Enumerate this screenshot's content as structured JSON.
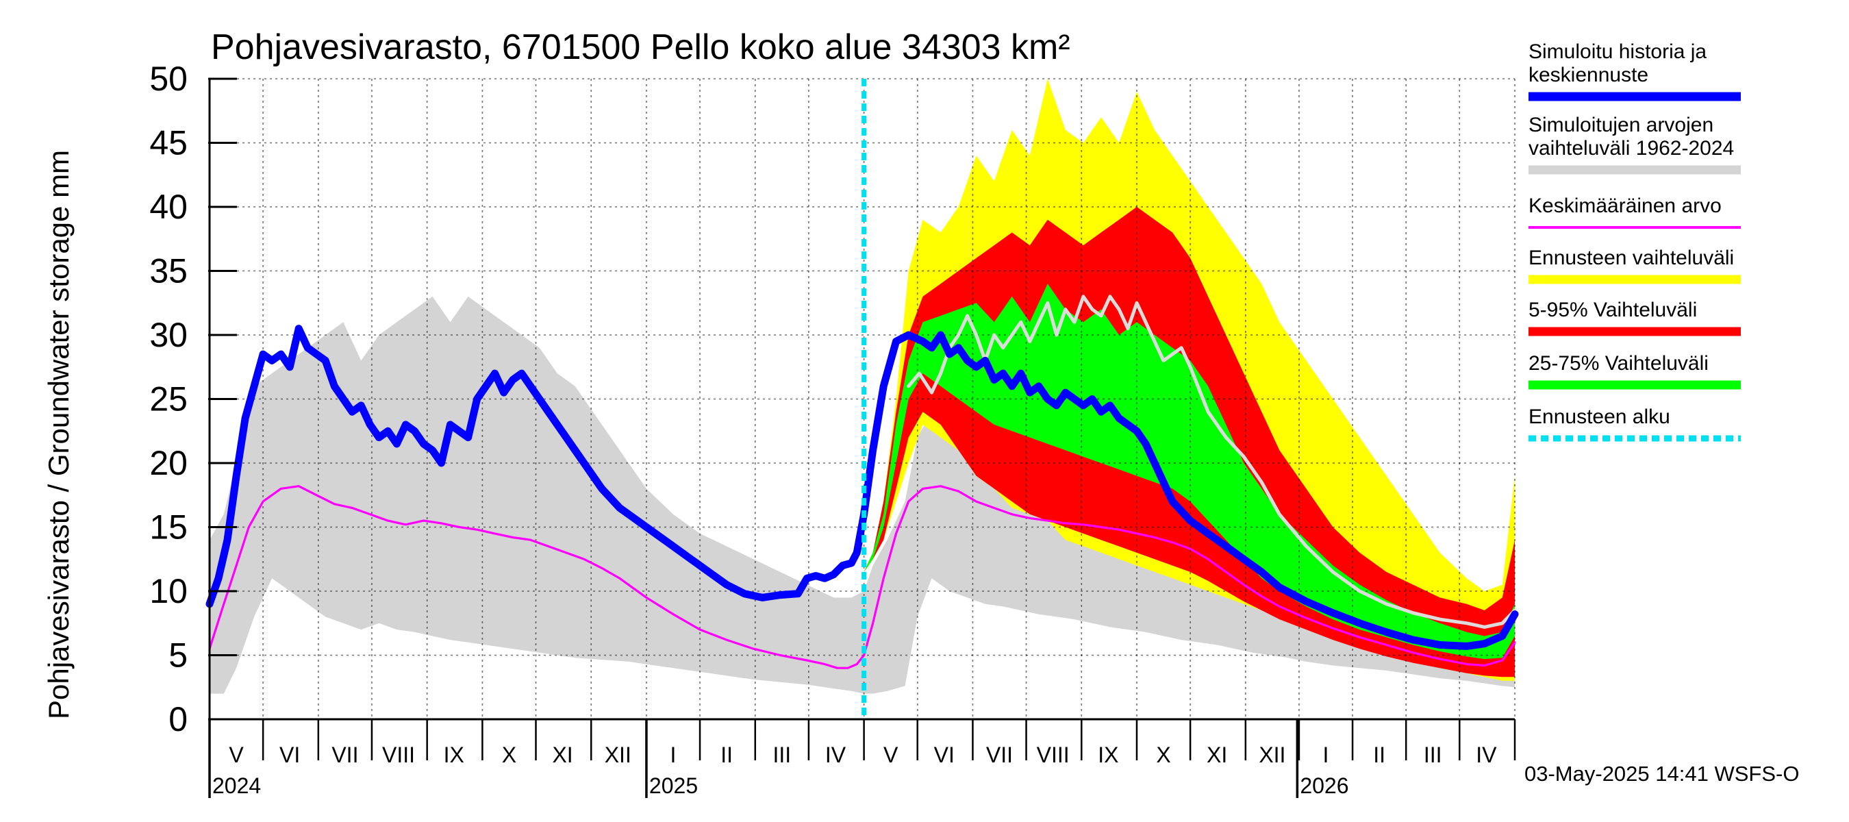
{
  "chart_data": {
    "type": "area",
    "title": "Pohjavesivarasto, 6701500 Pello koko alue 34303 km²",
    "ylabel": "Pohjavesivarasto / Groundwater storage   mm",
    "ylim": [
      0,
      50
    ],
    "yticks": [
      0,
      5,
      10,
      15,
      20,
      25,
      30,
      35,
      40,
      45,
      50
    ],
    "xlim_days": [
      0,
      732
    ],
    "forecast_start_day": 367,
    "year_ticks_day": [
      0,
      245,
      610
    ],
    "years": [
      {
        "label": "2024",
        "day": 0
      },
      {
        "label": "2025",
        "day": 245
      },
      {
        "label": "2026",
        "day": 610
      }
    ],
    "month_ticks_day": [
      0,
      30,
      61,
      91,
      122,
      153,
      183,
      214,
      245,
      275,
      306,
      336,
      367,
      397,
      428,
      458,
      489,
      520,
      550,
      581,
      611,
      641,
      671,
      701,
      732
    ],
    "months": [
      {
        "label": "V",
        "day": 15
      },
      {
        "label": "VI",
        "day": 45
      },
      {
        "label": "VII",
        "day": 76
      },
      {
        "label": "VIII",
        "day": 106
      },
      {
        "label": "IX",
        "day": 137
      },
      {
        "label": "X",
        "day": 168
      },
      {
        "label": "XI",
        "day": 198
      },
      {
        "label": "XII",
        "day": 229
      },
      {
        "label": "I",
        "day": 260
      },
      {
        "label": "II",
        "day": 290
      },
      {
        "label": "III",
        "day": 321
      },
      {
        "label": "IV",
        "day": 351
      },
      {
        "label": "V",
        "day": 382
      },
      {
        "label": "VI",
        "day": 412
      },
      {
        "label": "VII",
        "day": 443
      },
      {
        "label": "VIII",
        "day": 473
      },
      {
        "label": "IX",
        "day": 504
      },
      {
        "label": "X",
        "day": 535
      },
      {
        "label": "XI",
        "day": 565
      },
      {
        "label": "XII",
        "day": 596
      },
      {
        "label": "I",
        "day": 626
      },
      {
        "label": "II",
        "day": 656
      },
      {
        "label": "III",
        "day": 686
      },
      {
        "label": "IV",
        "day": 716
      }
    ],
    "series": [
      {
        "name": "Simuloitujen arvojen vaihteluväli 1962-2024",
        "kind": "band",
        "color": "#d4d4d4",
        "x": [
          0,
          8,
          15,
          25,
          35,
          45,
          55,
          65,
          75,
          85,
          95,
          105,
          115,
          125,
          135,
          145,
          155,
          165,
          175,
          185,
          195,
          205,
          215,
          225,
          235,
          245,
          260,
          275,
          290,
          305,
          320,
          335,
          350,
          360,
          367,
          372,
          380,
          390,
          397,
          405,
          415,
          425,
          435,
          445,
          455,
          465,
          475,
          485,
          495,
          505,
          515,
          525,
          535,
          545,
          555,
          565,
          575,
          585,
          595,
          605,
          615,
          630,
          645,
          660,
          675,
          690,
          705,
          715,
          725,
          732
        ],
        "lower": [
          2,
          2,
          4,
          8,
          11,
          10,
          9,
          8,
          7.5,
          7,
          7.5,
          7,
          6.8,
          6.5,
          6.2,
          6,
          5.8,
          5.6,
          5.4,
          5.2,
          5.0,
          4.8,
          4.7,
          4.6,
          4.5,
          4.3,
          4.0,
          3.7,
          3.4,
          3.1,
          2.9,
          2.7,
          2.4,
          2.2,
          2.0,
          2.0,
          2.2,
          2.6,
          8,
          11,
          10,
          9.5,
          9,
          8.8,
          8.5,
          8.2,
          8.0,
          7.8,
          7.5,
          7.2,
          7.0,
          6.8,
          6.5,
          6.2,
          6.0,
          5.8,
          5.5,
          5.2,
          5.0,
          4.8,
          4.5,
          4.2,
          4.0,
          3.8,
          3.5,
          3.2,
          3.0,
          2.8,
          2.6,
          2.5
        ],
        "upper": [
          14,
          16,
          20,
          26,
          27,
          28,
          29,
          30,
          31,
          28,
          30,
          31,
          32,
          33,
          31,
          33,
          32,
          31,
          30,
          29,
          27,
          26,
          24,
          22,
          20,
          18,
          16,
          14.5,
          13.5,
          12.5,
          11.5,
          10.5,
          9.5,
          9.5,
          10,
          12,
          14,
          17,
          22,
          24,
          23,
          23.5,
          23,
          22.5,
          22,
          21.5,
          21,
          20.5,
          20,
          19.5,
          19,
          18.5,
          18,
          17.5,
          17,
          16.5,
          16,
          15.5,
          15,
          14.5,
          14,
          13,
          12,
          11,
          10.2,
          9.5,
          9,
          8.5,
          8.2,
          8.0
        ]
      },
      {
        "name": "Ennusteen vaihteluväli",
        "kind": "band",
        "color": "#ffff00",
        "x": [
          367,
          372,
          378,
          385,
          392,
          400,
          410,
          420,
          430,
          440,
          450,
          460,
          470,
          480,
          490,
          500,
          510,
          520,
          530,
          540,
          550,
          560,
          570,
          580,
          590,
          600,
          615,
          630,
          645,
          660,
          675,
          690,
          705,
          715,
          725,
          732
        ],
        "lower": [
          11.5,
          12.5,
          14,
          17,
          20,
          23,
          22,
          21,
          19,
          18,
          16.5,
          16,
          15.5,
          14,
          13.5,
          13,
          12.5,
          12,
          11.5,
          11,
          10.5,
          10,
          9.5,
          9,
          8.5,
          8,
          7.2,
          6.5,
          5.8,
          5.2,
          4.6,
          4.0,
          3.6,
          3.3,
          3.0,
          3.0
        ],
        "upper": [
          11.5,
          13,
          17,
          25,
          35,
          39,
          38,
          40,
          44,
          42,
          46,
          44,
          50,
          46,
          45,
          47,
          45,
          49,
          46,
          44,
          42,
          40,
          38,
          36,
          34,
          31,
          28,
          25,
          22,
          19,
          16,
          13,
          11,
          10,
          10.5,
          19
        ]
      },
      {
        "name": "5-95% Vaihteluväli",
        "kind": "band",
        "color": "#ff0000",
        "x": [
          367,
          372,
          378,
          385,
          392,
          400,
          410,
          420,
          430,
          440,
          450,
          460,
          470,
          480,
          490,
          500,
          510,
          520,
          530,
          540,
          550,
          560,
          570,
          580,
          590,
          600,
          615,
          630,
          645,
          660,
          675,
          690,
          705,
          715,
          725,
          732
        ],
        "lower": [
          11.5,
          12.5,
          14,
          18,
          22,
          24,
          23,
          21,
          19,
          18,
          17,
          16,
          15.5,
          15,
          14.5,
          14,
          13.5,
          13,
          12.5,
          12,
          11.5,
          10.8,
          10,
          9.2,
          8.5,
          7.8,
          7,
          6.2,
          5.5,
          4.9,
          4.4,
          4.0,
          3.6,
          3.4,
          3.3,
          3.3
        ],
        "upper": [
          11.5,
          13,
          17,
          24,
          30,
          33,
          34,
          35,
          36,
          37,
          38,
          37,
          39,
          38,
          37,
          38,
          39,
          40,
          39,
          38,
          36,
          33,
          30,
          27,
          24,
          21,
          18,
          15,
          13,
          11.5,
          10.5,
          9.5,
          9,
          8.5,
          9.5,
          14
        ]
      },
      {
        "name": "25-75% Vaihteluväli",
        "kind": "band",
        "color": "#00ff00",
        "x": [
          367,
          372,
          378,
          385,
          392,
          400,
          410,
          420,
          430,
          440,
          450,
          460,
          470,
          480,
          490,
          500,
          510,
          520,
          530,
          540,
          550,
          560,
          570,
          580,
          590,
          600,
          615,
          630,
          645,
          660,
          675,
          690,
          705,
          715,
          725,
          732
        ],
        "lower": [
          11.5,
          12.5,
          15,
          20,
          25,
          27,
          26,
          25,
          24,
          23,
          22.5,
          22,
          21.5,
          21,
          20.5,
          20,
          19.5,
          19,
          18.5,
          18,
          17,
          15.5,
          14,
          12.5,
          11,
          10,
          8.8,
          7.8,
          7,
          6.4,
          5.8,
          5.3,
          4.9,
          4.7,
          4.8,
          6.5
        ],
        "upper": [
          11.5,
          13,
          16,
          23,
          28,
          31,
          31.5,
          32,
          32.5,
          31,
          33,
          31,
          34,
          32,
          31,
          32,
          30,
          31,
          30,
          29,
          28,
          26,
          23,
          20,
          18,
          16,
          14,
          12,
          10.5,
          9.3,
          8.3,
          7.5,
          6.8,
          6.5,
          6.8,
          9
        ]
      },
      {
        "name": "Keskimääräinen arvo",
        "kind": "line",
        "color": "#ff00ff",
        "x": [
          0,
          8,
          15,
          22,
          30,
          40,
          50,
          60,
          70,
          80,
          90,
          100,
          110,
          120,
          130,
          140,
          150,
          160,
          170,
          180,
          190,
          200,
          210,
          220,
          230,
          245,
          260,
          275,
          290,
          305,
          320,
          335,
          345,
          352,
          358,
          363,
          367,
          372,
          378,
          385,
          392,
          400,
          410,
          420,
          430,
          440,
          450,
          460,
          470,
          480,
          490,
          500,
          510,
          520,
          530,
          540,
          550,
          560,
          570,
          580,
          590,
          600,
          615,
          630,
          645,
          660,
          675,
          690,
          705,
          715,
          725,
          732
        ],
        "values": [
          5.5,
          9,
          12,
          15,
          17,
          18,
          18.2,
          17.5,
          16.8,
          16.5,
          16,
          15.5,
          15.2,
          15.5,
          15.3,
          15,
          14.8,
          14.5,
          14.2,
          14,
          13.5,
          13,
          12.5,
          11.8,
          11,
          9.5,
          8.2,
          7,
          6.2,
          5.5,
          5,
          4.6,
          4.3,
          4.0,
          4.0,
          4.3,
          5,
          7.5,
          11,
          14.5,
          17,
          18,
          18.2,
          17.8,
          17,
          16.5,
          16,
          15.7,
          15.5,
          15.3,
          15.2,
          15.0,
          14.8,
          14.5,
          14.2,
          13.8,
          13.3,
          12.5,
          11.5,
          10.5,
          9.6,
          8.8,
          7.9,
          7.1,
          6.4,
          5.8,
          5.2,
          4.7,
          4.3,
          4.2,
          4.6,
          6
        ]
      },
      {
        "name": "Simuloitu historia ja keskiennuste (upper scenario)",
        "kind": "line",
        "color": "#dcdcdc",
        "x": [
          392,
          398,
          405,
          410,
          415,
          420,
          425,
          430,
          435,
          440,
          445,
          450,
          455,
          460,
          465,
          470,
          475,
          480,
          485,
          490,
          495,
          500,
          505,
          510,
          515,
          520,
          525,
          530,
          535,
          540,
          545,
          550,
          560,
          570,
          580,
          590,
          600,
          615,
          630,
          645,
          660,
          675,
          690,
          705,
          715,
          725,
          732
        ],
        "values": [
          26,
          27,
          25.5,
          27,
          29,
          30,
          31.5,
          30,
          28,
          30,
          29,
          30,
          31,
          29.5,
          31,
          32.5,
          30,
          32,
          31,
          33,
          32,
          31.5,
          33,
          32,
          30.5,
          32.5,
          31,
          29.5,
          28,
          28.5,
          29,
          27.5,
          24,
          22,
          20.5,
          18.5,
          16,
          13.5,
          11.5,
          10,
          9,
          8.3,
          7.8,
          7.5,
          7.2,
          7.5,
          8.5
        ]
      },
      {
        "name": "Simuloitu historia ja keskiennuste",
        "kind": "line",
        "color": "#0000ff",
        "x": [
          0,
          5,
          10,
          15,
          20,
          25,
          30,
          35,
          40,
          45,
          50,
          55,
          60,
          65,
          70,
          75,
          80,
          85,
          90,
          95,
          100,
          105,
          110,
          115,
          120,
          125,
          130,
          135,
          140,
          145,
          150,
          155,
          160,
          165,
          170,
          175,
          180,
          185,
          190,
          195,
          200,
          205,
          210,
          215,
          220,
          230,
          240,
          250,
          260,
          270,
          280,
          290,
          300,
          310,
          320,
          330,
          335,
          340,
          345,
          350,
          355,
          360,
          363,
          367,
          372,
          378,
          385,
          392,
          400,
          405,
          410,
          415,
          420,
          425,
          430,
          435,
          440,
          445,
          450,
          455,
          460,
          465,
          470,
          475,
          480,
          485,
          490,
          495,
          500,
          505,
          510,
          515,
          520,
          525,
          530,
          535,
          540,
          550,
          560,
          570,
          580,
          590,
          600,
          615,
          630,
          645,
          660,
          675,
          690,
          705,
          715,
          725,
          732
        ],
        "values": [
          9,
          11,
          14,
          19,
          23.5,
          26,
          28.5,
          28,
          28.5,
          27.5,
          30.5,
          29,
          28.5,
          28,
          26,
          25,
          24,
          24.5,
          23,
          22,
          22.5,
          21.5,
          23,
          22.5,
          21.5,
          21,
          20,
          23,
          22.5,
          22,
          25,
          26,
          27,
          25.5,
          26.5,
          27,
          26,
          25,
          24,
          23,
          22,
          21,
          20,
          19,
          18,
          16.5,
          15.5,
          14.5,
          13.5,
          12.5,
          11.5,
          10.5,
          9.8,
          9.5,
          9.7,
          9.8,
          11,
          11.2,
          11,
          11.3,
          12,
          12.2,
          13,
          16,
          21,
          26,
          29.5,
          30,
          29.5,
          29,
          30,
          28.5,
          29,
          28,
          27.5,
          28,
          26.5,
          27,
          26,
          27,
          25.5,
          26,
          25,
          24.5,
          25.5,
          25,
          24.5,
          25,
          24,
          24.5,
          23.5,
          23,
          22.5,
          21.5,
          20,
          18.5,
          17,
          15.5,
          14.5,
          13.5,
          12.5,
          11.5,
          10.3,
          9.2,
          8.3,
          7.5,
          6.8,
          6.2,
          5.8,
          5.7,
          5.9,
          6.5,
          8.2
        ]
      },
      {
        "name": "Ennusteen alku",
        "kind": "vline",
        "color": "#00e0f0",
        "day": 367
      }
    ],
    "legend": [
      {
        "label": "Simuloitu historia ja\nkeskiennuste",
        "color": "#0000ff",
        "style": "thick"
      },
      {
        "label": "Simuloitujen arvojen\nvaihteluväli 1962-2024",
        "color": "#d4d4d4",
        "style": "thick"
      },
      {
        "label": "Keskimääräinen arvo",
        "color": "#ff00ff",
        "style": "thin"
      },
      {
        "label": "Ennusteen vaihteluväli",
        "color": "#ffff00",
        "style": "thick"
      },
      {
        "label": "5-95% Vaihteluväli",
        "color": "#ff0000",
        "style": "thick"
      },
      {
        "label": "25-75% Vaihteluväli",
        "color": "#00ff00",
        "style": "thick"
      },
      {
        "label": "Ennusteen alku",
        "color": "#00e0f0",
        "style": "dashed"
      }
    ],
    "legend_position": "right",
    "footer": "03-May-2025 14:41 WSFS-O"
  }
}
